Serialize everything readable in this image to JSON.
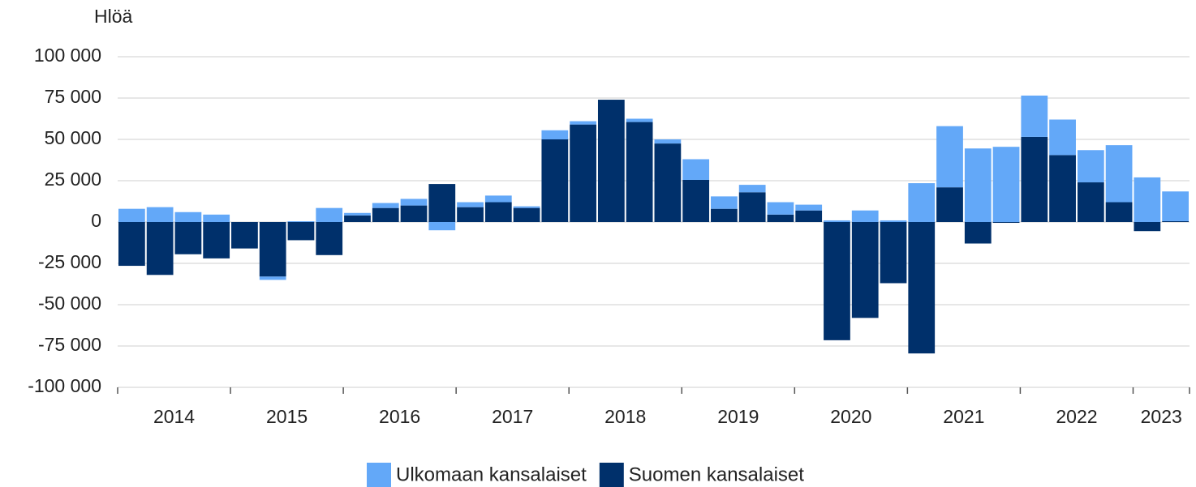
{
  "chart_data": {
    "type": "bar",
    "stacked": true,
    "y_label": "Hlöä",
    "categories": [
      null,
      "2014",
      null,
      null,
      null,
      "2015",
      null,
      null,
      null,
      "2016",
      null,
      null,
      null,
      "2017",
      null,
      null,
      null,
      "2018",
      null,
      null,
      null,
      "2019",
      null,
      null,
      null,
      "2020",
      null,
      null,
      null,
      "2021",
      null,
      null,
      null,
      "2022",
      null,
      null,
      "2023",
      null
    ],
    "series": [
      {
        "name": "Ulkomaan kansalaiset",
        "color": "#63a8f8",
        "values": [
          8000,
          9000,
          6000,
          4500,
          0,
          -2000,
          500,
          8500,
          1500,
          3000,
          4000,
          -5000,
          3000,
          4000,
          1000,
          5500,
          2000,
          0,
          2000,
          2500,
          12500,
          7500,
          4500,
          7500,
          3500,
          1000,
          7000,
          1000,
          23500,
          37000,
          44500,
          45500,
          25000,
          21500,
          19500,
          34500,
          27000,
          18000
        ]
      },
      {
        "name": "Suomen kansalaiset",
        "color": "#00306b",
        "values": [
          -26500,
          -32000,
          -19500,
          -22000,
          -16000,
          -33000,
          -11000,
          -20000,
          4000,
          8500,
          10000,
          23000,
          9000,
          12000,
          8500,
          50000,
          59000,
          74000,
          60500,
          47500,
          25500,
          8000,
          18000,
          4500,
          7000,
          -71500,
          -58000,
          -37000,
          -79500,
          21000,
          -13000,
          -500,
          51500,
          40500,
          24000,
          12000,
          -5500,
          500
        ]
      }
    ],
    "ylim": [
      -100000,
      100000
    ],
    "yticks": [
      {
        "value": -100000,
        "label": "-100 000"
      },
      {
        "value": -75000,
        "label": "-75 000"
      },
      {
        "value": -50000,
        "label": "-50 000"
      },
      {
        "value": -25000,
        "label": "-25 000"
      },
      0,
      {
        "value": 25000,
        "label": "25 000"
      },
      {
        "value": 50000,
        "label": "50 000"
      },
      {
        "value": 75000,
        "label": "75 000"
      },
      {
        "value": 100000,
        "label": "100 000"
      }
    ],
    "grid": true,
    "legend": "bottom"
  }
}
